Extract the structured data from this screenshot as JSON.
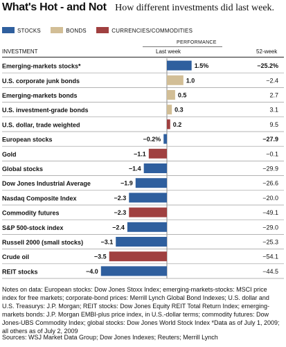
{
  "header": {
    "title": "What's Hot - and Not",
    "subtitle": "How different investments did last week."
  },
  "legend": [
    {
      "label": "STOCKS",
      "color": "#2f5f9e"
    },
    {
      "label": "BONDS",
      "color": "#d2be96"
    },
    {
      "label": "CURRENCIES/COMMODITIES",
      "color": "#a04040"
    }
  ],
  "table_header": {
    "performance": "PERFORMANCE",
    "investment": "INVESTMENT",
    "last_week": "Last week",
    "week52": "52-week"
  },
  "chart_data": {
    "type": "bar",
    "orientation": "horizontal",
    "series_column": "Last week",
    "categories": [
      "Emerging-markets stocks*",
      "U.S. corporate junk bonds",
      "Emerging-markets bonds",
      "U.S. investment-grade bonds",
      "U.S. dollar, trade weighted",
      "European stocks",
      "Gold",
      "Global stocks",
      "Dow Jones Industrial Average",
      "Nasdaq Composite Index",
      "Commodity futures",
      "S&P 500-stock index",
      "Russell 2000 (small stocks)",
      "Crude oil",
      "REIT stocks"
    ],
    "values": [
      1.5,
      1.0,
      0.5,
      0.3,
      0.2,
      -0.2,
      -1.1,
      -1.4,
      -1.9,
      -2.3,
      -2.3,
      -2.4,
      -3.1,
      -3.5,
      -4.0
    ],
    "value_labels": [
      "1.5%",
      "1.0",
      "0.5",
      "0.3",
      "0.2",
      "−0.2%",
      "−1.1",
      "−1.4",
      "−1.9",
      "−2.3",
      "−2.3",
      "−2.4",
      "−3.1",
      "−3.5",
      "−4.0"
    ],
    "asset_class": [
      "stocks",
      "bonds",
      "bonds",
      "bonds",
      "currencies",
      "stocks",
      "currencies",
      "stocks",
      "stocks",
      "stocks",
      "currencies",
      "stocks",
      "stocks",
      "currencies",
      "stocks"
    ],
    "bold_rows": [
      0,
      5
    ],
    "week52_labels": [
      "−25.2%",
      "−2.4",
      "2.7",
      "3.1",
      "9.5",
      "−27.9",
      "−0.1",
      "−29.9",
      "−26.6",
      "−20.0",
      "−49.1",
      "−29.0",
      "−25.3",
      "−54.1",
      "−44.5"
    ],
    "xlim": [
      -4.0,
      1.5
    ],
    "grid": false,
    "legend_position": "top-left"
  },
  "notes": "Notes on data: European stocks: Dow Jones Stoxx Index; emerging-markets-stocks: MSCI price index for free markets; corporate-bond prices: Merrill Lynch Global Bond Indexes; U.S. dollar and U.S. Treasurys: J.P. Morgan; REIT stocks: Dow Jones Equity REIT Total Return Index; emerging-markets bonds: J.P. Morgan EMBI-plus price index, in U.S.-dollar terms; commodity futures: Dow Jones-UBS Commodity Index; global stocks: Dow Jones World Stock Index  *Data as of July 1, 2009; all others as of July 2, 2009",
  "sources": "Sources: WSJ Market Data Group; Dow Jones Indexes; Reuters; Merrill Lynch"
}
